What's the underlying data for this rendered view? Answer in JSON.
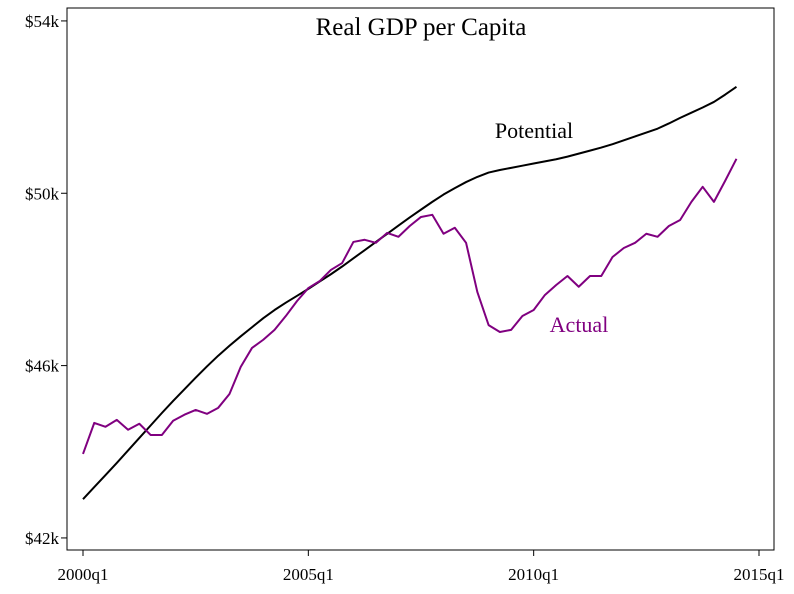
{
  "chart_data": {
    "type": "line",
    "title": "Real GDP per Capita",
    "x": [
      "2000q1",
      "2000q2",
      "2000q3",
      "2000q4",
      "2001q1",
      "2001q2",
      "2001q3",
      "2001q4",
      "2002q1",
      "2002q2",
      "2002q3",
      "2002q4",
      "2003q1",
      "2003q2",
      "2003q3",
      "2003q4",
      "2004q1",
      "2004q2",
      "2004q3",
      "2004q4",
      "2005q1",
      "2005q2",
      "2005q3",
      "2005q4",
      "2006q1",
      "2006q2",
      "2006q3",
      "2006q4",
      "2007q1",
      "2007q2",
      "2007q3",
      "2007q4",
      "2008q1",
      "2008q2",
      "2008q3",
      "2008q4",
      "2009q1",
      "2009q2",
      "2009q3",
      "2009q4",
      "2010q1",
      "2010q2",
      "2010q3",
      "2010q4",
      "2011q1",
      "2011q2",
      "2011q3",
      "2011q4",
      "2012q1",
      "2012q2",
      "2012q3",
      "2012q4",
      "2013q1",
      "2013q2",
      "2013q3",
      "2013q4",
      "2014q1",
      "2014q2",
      "2014q3"
    ],
    "series": [
      {
        "name": "Potential",
        "color": "#000000",
        "values": [
          42900,
          43180,
          43460,
          43740,
          44030,
          44320,
          44610,
          44900,
          45180,
          45450,
          45720,
          45980,
          46230,
          46460,
          46680,
          46890,
          47100,
          47290,
          47460,
          47620,
          47780,
          47950,
          48120,
          48300,
          48490,
          48680,
          48870,
          49060,
          49250,
          49440,
          49620,
          49800,
          49970,
          50120,
          50260,
          50380,
          50480,
          50540,
          50590,
          50640,
          50690,
          50740,
          50790,
          50850,
          50920,
          50990,
          51060,
          51140,
          51230,
          51320,
          51410,
          51500,
          51620,
          51750,
          51870,
          51990,
          52120,
          52290,
          52470
        ]
      },
      {
        "name": "Actual",
        "color": "#800080",
        "values": [
          43950,
          44670,
          44580,
          44740,
          44510,
          44650,
          44390,
          44390,
          44720,
          44860,
          44970,
          44880,
          45020,
          45340,
          45970,
          46410,
          46600,
          46830,
          47150,
          47500,
          47800,
          47960,
          48220,
          48380,
          48870,
          48920,
          48850,
          49080,
          48990,
          49240,
          49450,
          49500,
          49060,
          49200,
          48850,
          47710,
          46940,
          46780,
          46830,
          47150,
          47290,
          47640,
          47870,
          48080,
          47830,
          48080,
          48080,
          48520,
          48730,
          48850,
          49060,
          48990,
          49240,
          49380,
          49800,
          50150,
          49800,
          50290,
          50800
        ]
      }
    ],
    "ylim": [
      41720,
      54300
    ],
    "yticks": [
      {
        "value": 42000,
        "label": "$42k"
      },
      {
        "value": 46000,
        "label": "$46k"
      },
      {
        "value": 50000,
        "label": "$50k"
      },
      {
        "value": 54000,
        "label": "$54k"
      }
    ],
    "xticks": [
      "2000q1",
      "2005q1",
      "2010q1",
      "2015q1"
    ]
  }
}
